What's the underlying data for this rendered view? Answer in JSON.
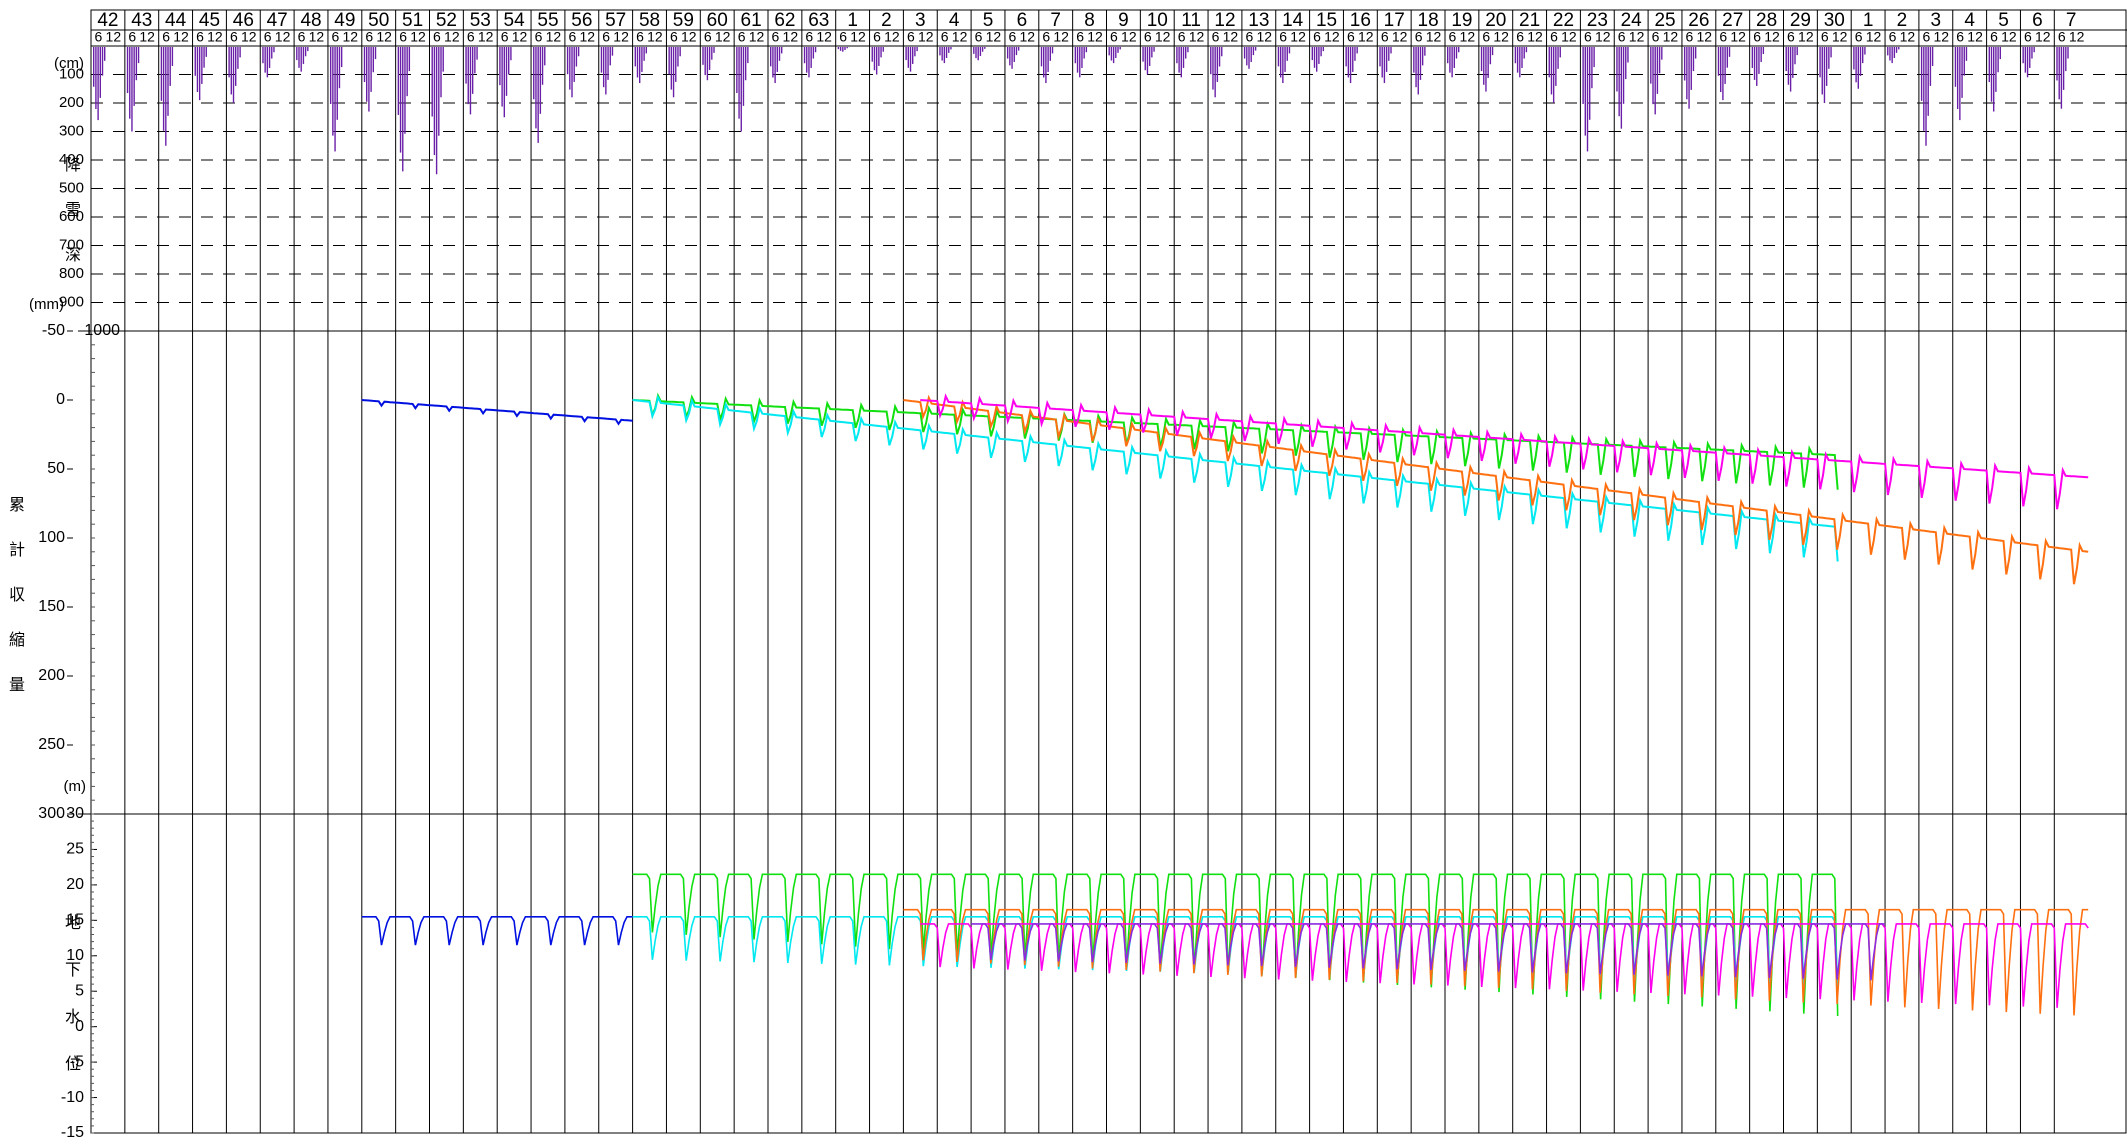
{
  "chart_data": [
    {
      "type": "bar",
      "panel": "snow-depth",
      "y_unit_label": "(cm)",
      "y_axis_title": "降雪深",
      "y_axis_title_chars": [
        "降",
        "雪",
        "深"
      ],
      "y_bottom_label": "(mm)",
      "ylim": [
        0,
        1000
      ],
      "y_inverted": true,
      "yticks": [
        100,
        200,
        300,
        400,
        500,
        600,
        700,
        800,
        900
      ],
      "grid": "dashed",
      "bar_color": "#6a1fa8",
      "year_labels": [
        "42",
        "43",
        "44",
        "45",
        "46",
        "47",
        "48",
        "49",
        "50",
        "51",
        "52",
        "53",
        "54",
        "55",
        "56",
        "57",
        "58",
        "59",
        "60",
        "61",
        "62",
        "63",
        "1",
        "2",
        "3",
        "4",
        "5",
        "6",
        "7",
        "8",
        "9",
        "10",
        "11",
        "12",
        "13",
        "14",
        "15",
        "16",
        "17",
        "18",
        "19",
        "20",
        "21",
        "22",
        "23",
        "24",
        "25",
        "26",
        "27",
        "28",
        "29",
        "30",
        "1",
        "2",
        "3",
        "4",
        "5",
        "6",
        "7"
      ],
      "month_labels": [
        "6",
        "12"
      ],
      "x": [
        "42",
        "43",
        "44",
        "45",
        "46",
        "47",
        "48",
        "49",
        "50",
        "51",
        "52",
        "53",
        "54",
        "55",
        "56",
        "57",
        "58",
        "59",
        "60",
        "61",
        "62",
        "63",
        "1",
        "2",
        "3",
        "4",
        "5",
        "6",
        "7",
        "8",
        "9",
        "10",
        "11",
        "12",
        "13",
        "14",
        "15",
        "16",
        "17",
        "18",
        "19",
        "20",
        "21",
        "22",
        "23",
        "24",
        "25",
        "26",
        "27",
        "28",
        "29",
        "30",
        "1",
        "2",
        "3",
        "4",
        "5",
        "6",
        "7"
      ],
      "values": [
        260,
        300,
        350,
        190,
        200,
        110,
        90,
        370,
        230,
        440,
        450,
        240,
        250,
        340,
        180,
        170,
        130,
        180,
        120,
        300,
        130,
        110,
        20,
        100,
        90,
        60,
        50,
        80,
        130,
        110,
        60,
        100,
        110,
        180,
        80,
        130,
        90,
        130,
        130,
        170,
        110,
        160,
        110,
        200,
        370,
        290,
        240,
        220,
        190,
        140,
        160,
        200,
        150,
        60,
        350,
        260,
        230,
        110,
        220
      ]
    },
    {
      "type": "line",
      "panel": "cumulative-subsidence",
      "y_axis_title": "累計収縮量",
      "y_axis_title_chars": [
        "累",
        "計",
        "収",
        "縮",
        "量"
      ],
      "y_inverted": true,
      "ylim": [
        -50,
        300
      ],
      "yticks": [
        -50,
        0,
        50,
        100,
        150,
        200,
        250,
        300
      ],
      "x_units": "years since S42 start",
      "series": [
        {
          "color": "#0010e0",
          "x": [
            8.0,
            16.0
          ],
          "values": [
            0,
            15
          ]
        },
        {
          "color": "#10e010",
          "x": [
            16.0,
            51.6
          ],
          "values": [
            0,
            40
          ]
        },
        {
          "color": "#00e8f0",
          "x": [
            16.0,
            51.6
          ],
          "values": [
            0,
            92
          ]
        },
        {
          "color": "#ff7010",
          "x": [
            24.0,
            59.0
          ],
          "values": [
            0,
            110
          ]
        },
        {
          "color": "#ff00ee",
          "x": [
            24.5,
            59.0
          ],
          "values": [
            0,
            56
          ]
        }
      ]
    },
    {
      "type": "line",
      "panel": "groundwater-level",
      "y_unit_label": "(m)",
      "y_axis_title": "地下水位",
      "y_axis_title_chars": [
        "地",
        "下",
        "水",
        "位"
      ],
      "ylim": [
        -15,
        30
      ],
      "yticks": [
        30,
        25,
        20,
        15,
        10,
        5,
        0,
        -5,
        -10,
        -15
      ],
      "series": [
        {
          "color": "#0010e0",
          "x": [
            8.0,
            16.0
          ],
          "base": 15.5,
          "dip": 4,
          "amp_trend": 0
        },
        {
          "color": "#10e010",
          "x": [
            16.0,
            51.6
          ],
          "base": 21.5,
          "dip": 8,
          "amp_trend": 12
        },
        {
          "color": "#00e8f0",
          "x": [
            16.0,
            51.6
          ],
          "base": 15.5,
          "dip": 6,
          "amp_trend": 4
        },
        {
          "color": "#ff7010",
          "x": [
            24.0,
            59.0
          ],
          "base": 16.5,
          "dip": 7,
          "amp_trend": 8
        },
        {
          "color": "#ff00ee",
          "x": [
            24.5,
            59.0
          ],
          "base": 14.5,
          "dip": 6,
          "amp_trend": 6
        },
        {
          "color": "#8a2be2",
          "x": [
            26.0,
            53.0
          ],
          "base": 14.5,
          "dip": 5,
          "amp_trend": 3
        }
      ]
    }
  ]
}
